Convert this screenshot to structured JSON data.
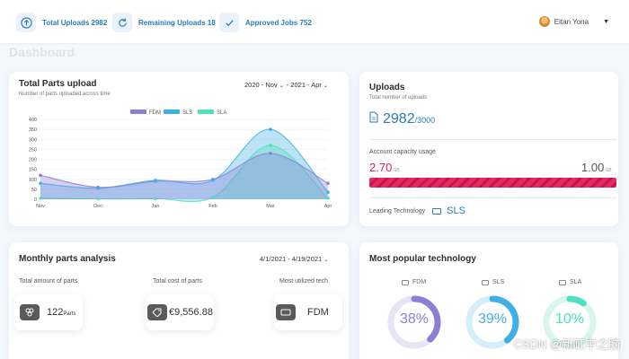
{
  "header": {
    "stats": [
      {
        "label": "Total Uploads 2982",
        "icon": "upload-icon"
      },
      {
        "label": "Remaining Uploads 18",
        "icon": "refresh-icon"
      },
      {
        "label": "Approved Jobs 752",
        "icon": "check-icon"
      }
    ],
    "user_name": "Eitan Yona"
  },
  "page_title": "Dashboard",
  "parts_chart": {
    "title": "Total Parts upload",
    "subtitle": "Number of parts uploaded across time",
    "date_from": "2020 - Nov",
    "date_to": "- 2021 - Apr"
  },
  "chart_data": {
    "type": "area",
    "title": "Total Parts upload",
    "categories": [
      "Nov",
      "Dec",
      "Jan",
      "Feb",
      "Mar",
      "Apr"
    ],
    "y_ticks": [
      0,
      50,
      100,
      150,
      200,
      250,
      300,
      350,
      400
    ],
    "ylim": [
      0,
      400
    ],
    "legend_position": "top",
    "series": [
      {
        "name": "FDM",
        "color": "#8b7fd4",
        "values": [
          120,
          60,
          90,
          100,
          230,
          80
        ]
      },
      {
        "name": "SLS",
        "color": "#3fb0e6",
        "values": [
          80,
          55,
          95,
          95,
          350,
          35
        ]
      },
      {
        "name": "SLA",
        "color": "#4fe0bf",
        "values": [
          5,
          2,
          3,
          10,
          270,
          5
        ]
      }
    ]
  },
  "uploads": {
    "title": "Uploads",
    "subtitle": "Total number of uploads",
    "count": "2982",
    "total": "/3000",
    "capacity_label": "Account capacity usage",
    "capacity_used": "2.70",
    "capacity_max": "1.00",
    "unit": "GB",
    "leading_label": "Leading Technology",
    "leading_value": "SLS"
  },
  "monthly": {
    "title": "Monthly parts analysis",
    "date_range": "4/1/2021 - 4/19/2021",
    "total_amount_label": "Total amount of parts",
    "total_amount_value": "122",
    "total_amount_unit": "Parts",
    "total_cost_label": "Total cost of parts",
    "total_cost_value": "€9,556.88",
    "most_utilized_label": "Most utilized tech",
    "most_utilized_value": "FDM"
  },
  "popular": {
    "title": "Most popular technology",
    "items": [
      {
        "name": "FDM",
        "percent": 38,
        "label": "38%",
        "color": "#8b7fd4",
        "track": "#e6e4f5",
        "text_color": "#8b7fd4"
      },
      {
        "name": "SLS",
        "percent": 39,
        "label": "39%",
        "color": "#3fb0e6",
        "track": "#d6eef9",
        "text_color": "#3fb0e6"
      },
      {
        "name": "SLA",
        "percent": 10,
        "label": "10%",
        "color": "#4fe0bf",
        "track": "#d8f6ee",
        "text_color": "#4fe0bf"
      }
    ]
  },
  "watermark": "CSDN @新缸中之脑"
}
